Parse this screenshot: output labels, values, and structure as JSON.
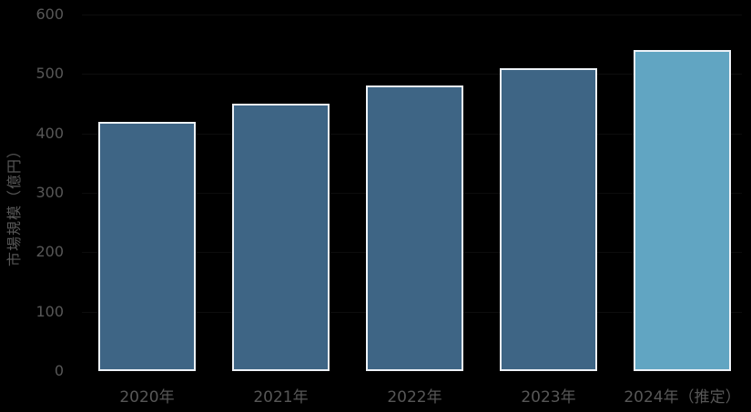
{
  "chart_data": {
    "type": "bar",
    "title": "",
    "xlabel": "",
    "ylabel": "市場規模（億円）",
    "categories": [
      "2020年",
      "2021年",
      "2022年",
      "2023年",
      "2024年（推定）"
    ],
    "values": [
      420,
      450,
      480,
      510,
      540
    ],
    "ylim": [
      0,
      600
    ],
    "yticks": [
      0,
      100,
      200,
      300,
      400,
      500,
      600
    ],
    "legend": null,
    "grid": "faint-horizontal",
    "colors": {
      "background": "#000000",
      "bar_default": "#3E6585",
      "bar_highlight": "#61A5C2",
      "bar_edge": "#EDF2F7",
      "text": "#575757"
    },
    "bar_colors": [
      "#3E6585",
      "#3E6585",
      "#3E6585",
      "#3E6585",
      "#61A5C2"
    ]
  }
}
